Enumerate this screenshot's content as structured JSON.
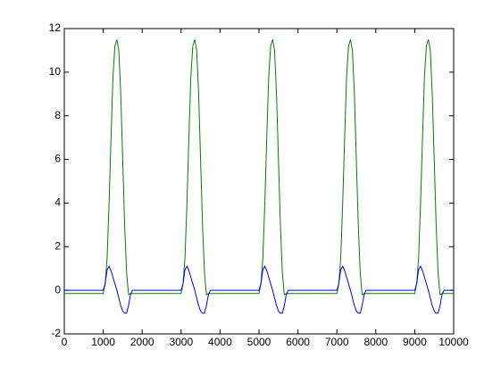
{
  "chart_data": {
    "type": "line",
    "x": [
      0,
      1000,
      1050,
      1100,
      1150,
      1200,
      1250,
      1300,
      1350,
      1400,
      1450,
      1500,
      1550,
      1600,
      1650,
      1700,
      1750,
      3000,
      3050,
      3100,
      3150,
      3200,
      3250,
      3300,
      3350,
      3400,
      3450,
      3500,
      3550,
      3600,
      3650,
      3700,
      3750,
      5000,
      5050,
      5100,
      5150,
      5200,
      5250,
      5300,
      5350,
      5400,
      5450,
      5500,
      5550,
      5600,
      5650,
      5700,
      5750,
      7000,
      7050,
      7100,
      7150,
      7200,
      7250,
      7300,
      7350,
      7400,
      7450,
      7500,
      7550,
      7600,
      7650,
      7700,
      7750,
      9000,
      9050,
      9100,
      9150,
      9200,
      9250,
      9300,
      9350,
      9400,
      9450,
      9500,
      9550,
      9600,
      9650,
      9700,
      9750,
      10000
    ],
    "series": [
      {
        "color": "#008000",
        "values": [
          -0.15,
          -0.15,
          0.3,
          1.5,
          4,
          7,
          9.8,
          11.2,
          11.5,
          11,
          9,
          6,
          3,
          0.8,
          -0.2,
          -0.15,
          -0.15,
          -0.15,
          0.3,
          1.5,
          4,
          7,
          9.8,
          11.2,
          11.5,
          11,
          9,
          6,
          3,
          0.8,
          -0.2,
          -0.15,
          -0.15,
          -0.15,
          0.3,
          1.5,
          4,
          7,
          9.8,
          11.2,
          11.5,
          11,
          9,
          6,
          3,
          0.8,
          -0.2,
          -0.15,
          -0.15,
          -0.15,
          0.3,
          1.5,
          4,
          7,
          9.8,
          11.2,
          11.5,
          11,
          9,
          6,
          3,
          0.8,
          -0.2,
          -0.15,
          -0.15,
          -0.15,
          0.3,
          1.5,
          4,
          7,
          9.8,
          11.2,
          11.5,
          11,
          9,
          6,
          3,
          0.8,
          -0.2,
          -0.15,
          -0.15,
          -0.15
        ]
      },
      {
        "color": "#0000ff",
        "values": [
          0,
          0,
          0.3,
          0.95,
          1.1,
          0.9,
          0.6,
          0.3,
          0,
          -0.35,
          -0.7,
          -0.95,
          -1.05,
          -1.05,
          -0.7,
          -0.2,
          0,
          0,
          0.3,
          0.95,
          1.1,
          0.9,
          0.6,
          0.3,
          0,
          -0.35,
          -0.7,
          -0.95,
          -1.05,
          -1.05,
          -0.7,
          -0.2,
          0,
          0,
          0.3,
          0.95,
          1.1,
          0.9,
          0.6,
          0.3,
          0,
          -0.35,
          -0.7,
          -0.95,
          -1.05,
          -1.05,
          -0.7,
          -0.2,
          0,
          0,
          0.3,
          0.95,
          1.1,
          0.9,
          0.6,
          0.3,
          0,
          -0.35,
          -0.7,
          -0.95,
          -1.05,
          -1.05,
          -0.7,
          -0.2,
          0,
          0,
          0.3,
          0.95,
          1.1,
          0.9,
          0.6,
          0.3,
          0,
          -0.35,
          -0.7,
          -0.95,
          -1.05,
          -1.05,
          -0.7,
          -0.2,
          0,
          0
        ]
      }
    ],
    "xlim": [
      0,
      10000
    ],
    "xticks": [
      0,
      1000,
      2000,
      3000,
      4000,
      5000,
      6000,
      7000,
      8000,
      9000,
      10000
    ],
    "ylim": [
      -2,
      12
    ],
    "yticks": [
      -2,
      0,
      2,
      4,
      6,
      8,
      10,
      12
    ],
    "grid": false
  }
}
